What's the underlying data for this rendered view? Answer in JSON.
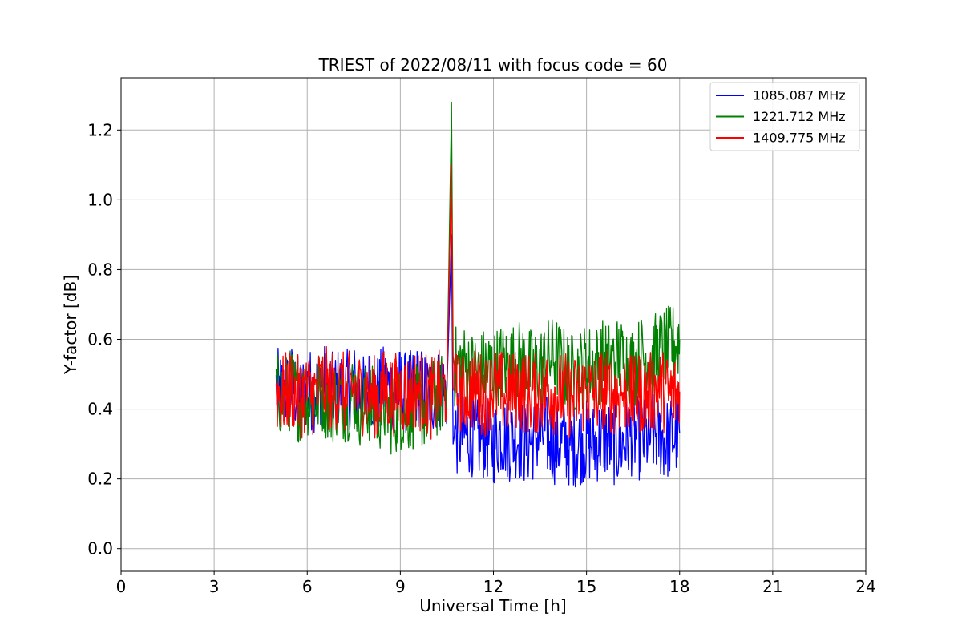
{
  "chart_data": {
    "type": "line",
    "title": "TRIEST of 2022/08/11 with focus code = 60",
    "xlabel": "Universal Time [h]",
    "ylabel": "Y-factor [dB]",
    "xlim": [
      0,
      24
    ],
    "ylim": [
      -0.065,
      1.35
    ],
    "xticks": [
      "0",
      "3",
      "6",
      "9",
      "12",
      "15",
      "18",
      "21",
      "24"
    ],
    "yticks": [
      "0.0",
      "0.2",
      "0.4",
      "0.6",
      "0.8",
      "1.0",
      "1.2"
    ],
    "grid": true,
    "legend_position": "top-right",
    "series": [
      {
        "name": "1085.087 MHz",
        "color": "#0000ff",
        "x": [
          5.0,
          5.25,
          5.5,
          5.75,
          6.0,
          6.25,
          6.5,
          6.75,
          7.0,
          7.25,
          7.5,
          7.75,
          8.0,
          8.25,
          8.5,
          8.75,
          9.0,
          9.25,
          9.5,
          9.75,
          10.0,
          10.25,
          10.5,
          10.65,
          10.7,
          10.75,
          11.0,
          11.25,
          11.5,
          11.75,
          12.0,
          12.25,
          12.5,
          12.75,
          13.0,
          13.25,
          13.5,
          13.75,
          14.0,
          14.25,
          14.5,
          14.75,
          15.0,
          15.25,
          15.5,
          15.75,
          16.0,
          16.25,
          16.5,
          16.75,
          17.0,
          17.25,
          17.5,
          17.75,
          18.0
        ],
        "y": [
          0.46,
          0.44,
          0.47,
          0.43,
          0.46,
          0.45,
          0.48,
          0.44,
          0.46,
          0.45,
          0.47,
          0.43,
          0.46,
          0.44,
          0.47,
          0.45,
          0.46,
          0.44,
          0.47,
          0.45,
          0.44,
          0.46,
          0.45,
          0.9,
          0.3,
          0.33,
          0.32,
          0.33,
          0.31,
          0.32,
          0.3,
          0.33,
          0.31,
          0.32,
          0.3,
          0.31,
          0.33,
          0.32,
          0.3,
          0.31,
          0.29,
          0.3,
          0.31,
          0.3,
          0.32,
          0.31,
          0.29,
          0.31,
          0.33,
          0.31,
          0.32,
          0.33,
          0.31,
          0.32,
          0.33
        ]
      },
      {
        "name": "1221.712 MHz",
        "color": "#008000",
        "x": [
          5.0,
          5.25,
          5.5,
          5.75,
          6.0,
          6.25,
          6.5,
          6.75,
          7.0,
          7.25,
          7.5,
          7.75,
          8.0,
          8.25,
          8.5,
          8.75,
          9.0,
          9.25,
          9.5,
          9.75,
          10.0,
          10.25,
          10.5,
          10.65,
          10.7,
          10.75,
          11.0,
          11.25,
          11.5,
          11.75,
          12.0,
          12.25,
          12.5,
          12.75,
          13.0,
          13.25,
          13.5,
          13.75,
          14.0,
          14.25,
          14.5,
          14.75,
          15.0,
          15.25,
          15.5,
          15.75,
          16.0,
          16.25,
          16.5,
          16.75,
          17.0,
          17.25,
          17.5,
          17.75,
          18.0
        ],
        "y": [
          0.45,
          0.43,
          0.46,
          0.42,
          0.44,
          0.43,
          0.45,
          0.41,
          0.44,
          0.42,
          0.45,
          0.4,
          0.42,
          0.39,
          0.41,
          0.38,
          0.4,
          0.39,
          0.41,
          0.4,
          0.42,
          0.44,
          0.46,
          1.28,
          0.55,
          0.52,
          0.53,
          0.51,
          0.5,
          0.52,
          0.51,
          0.53,
          0.52,
          0.54,
          0.53,
          0.51,
          0.52,
          0.54,
          0.55,
          0.52,
          0.5,
          0.51,
          0.53,
          0.52,
          0.54,
          0.53,
          0.55,
          0.54,
          0.52,
          0.55,
          0.54,
          0.56,
          0.57,
          0.58,
          0.6
        ]
      },
      {
        "name": "1409.775 MHz",
        "color": "#ff0000",
        "x": [
          5.0,
          5.25,
          5.5,
          5.75,
          6.0,
          6.25,
          6.5,
          6.75,
          7.0,
          7.25,
          7.5,
          7.75,
          8.0,
          8.25,
          8.5,
          8.75,
          9.0,
          9.25,
          9.5,
          9.75,
          10.0,
          10.25,
          10.5,
          10.65,
          10.7,
          10.75,
          11.0,
          11.25,
          11.5,
          11.75,
          12.0,
          12.25,
          12.5,
          12.75,
          13.0,
          13.25,
          13.5,
          13.75,
          14.0,
          14.25,
          14.5,
          14.75,
          15.0,
          15.25,
          15.5,
          15.75,
          16.0,
          16.25,
          16.5,
          16.75,
          17.0,
          17.25,
          17.5,
          17.75,
          18.0
        ],
        "y": [
          0.45,
          0.44,
          0.46,
          0.43,
          0.45,
          0.44,
          0.47,
          0.45,
          0.46,
          0.44,
          0.46,
          0.44,
          0.45,
          0.43,
          0.46,
          0.44,
          0.45,
          0.44,
          0.46,
          0.45,
          0.43,
          0.45,
          0.46,
          1.1,
          0.46,
          0.45,
          0.44,
          0.46,
          0.45,
          0.44,
          0.46,
          0.45,
          0.44,
          0.46,
          0.45,
          0.44,
          0.45,
          0.46,
          0.44,
          0.45,
          0.43,
          0.44,
          0.45,
          0.44,
          0.46,
          0.45,
          0.44,
          0.45,
          0.43,
          0.45,
          0.44,
          0.46,
          0.45,
          0.44,
          0.45
        ]
      }
    ]
  }
}
